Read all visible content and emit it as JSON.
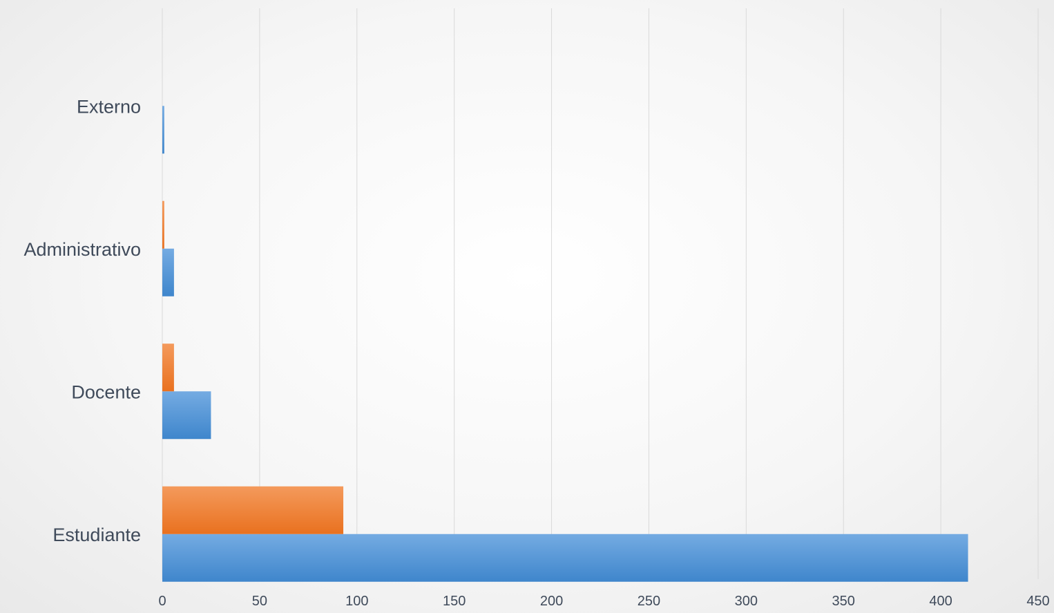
{
  "chart_data": {
    "type": "bar",
    "orientation": "horizontal",
    "categories": [
      "Estudiante",
      "Docente",
      "Administrativo",
      "Externo"
    ],
    "series": [
      {
        "values": [
          414,
          25,
          6,
          1
        ],
        "color": "#5b9bd5"
      },
      {
        "values": [
          93,
          6,
          1,
          0
        ],
        "color": "#ed7d31"
      }
    ],
    "xlim": [
      0,
      450
    ],
    "xticks": [
      0,
      50,
      100,
      150,
      200,
      250,
      300,
      350,
      400,
      450
    ],
    "grid": true,
    "legend": "none"
  }
}
